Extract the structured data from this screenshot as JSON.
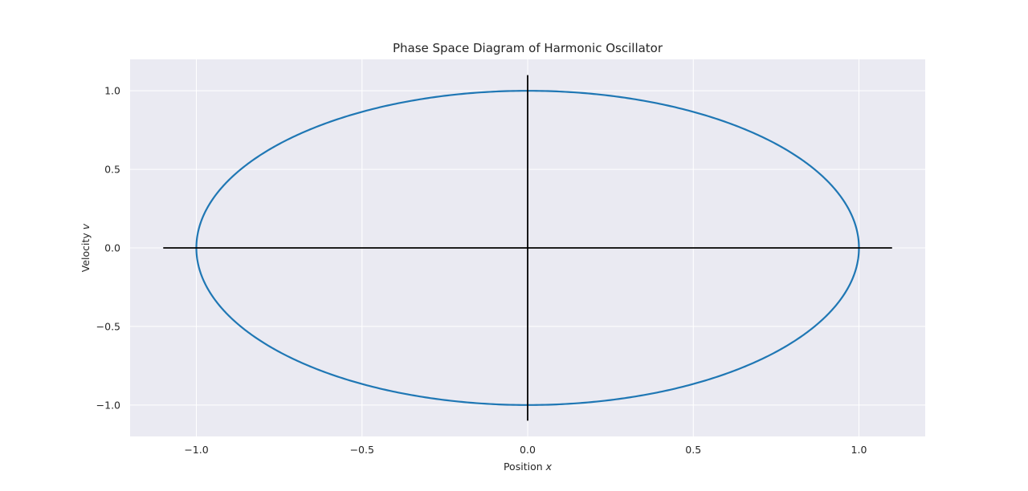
{
  "chart_data": {
    "type": "line",
    "title": "Phase Space Diagram of Harmonic Oscillator",
    "xlabel": "Position",
    "xlabel_var": "x",
    "ylabel": "Velocity",
    "ylabel_var": "v",
    "xlim": [
      -1.2,
      1.2
    ],
    "ylim": [
      -1.2,
      1.2
    ],
    "xticks": [
      -1.0,
      -0.5,
      0.0,
      0.5,
      1.0
    ],
    "xtick_labels": [
      "−1.0",
      "−0.5",
      "0.0",
      "0.5",
      "1.0"
    ],
    "yticks": [
      -1.0,
      -0.5,
      0.0,
      0.5,
      1.0
    ],
    "ytick_labels": [
      "−1.0",
      "−0.5",
      "0.0",
      "0.5",
      "1.0"
    ],
    "grid": true,
    "series": [
      {
        "kind": "parametric",
        "x_expr": "cos(t)",
        "y_expr": "-sin(t)",
        "t_range": [
          0,
          6.283185307179586
        ],
        "amplitude_x": 1.0,
        "amplitude_y": 1.0,
        "color": "#1f77b4"
      }
    ],
    "reference_lines": [
      {
        "orientation": "horizontal",
        "y": 0.0,
        "x_range": [
          -1.1,
          1.1
        ],
        "color": "#000000"
      },
      {
        "orientation": "vertical",
        "x": 0.0,
        "y_range": [
          -1.1,
          1.1
        ],
        "color": "#000000"
      }
    ],
    "colors": {
      "plot_background": "#eaeaf2",
      "grid": "#ffffff",
      "text": "#262626",
      "series": "#1f77b4",
      "reference": "#000000"
    }
  }
}
